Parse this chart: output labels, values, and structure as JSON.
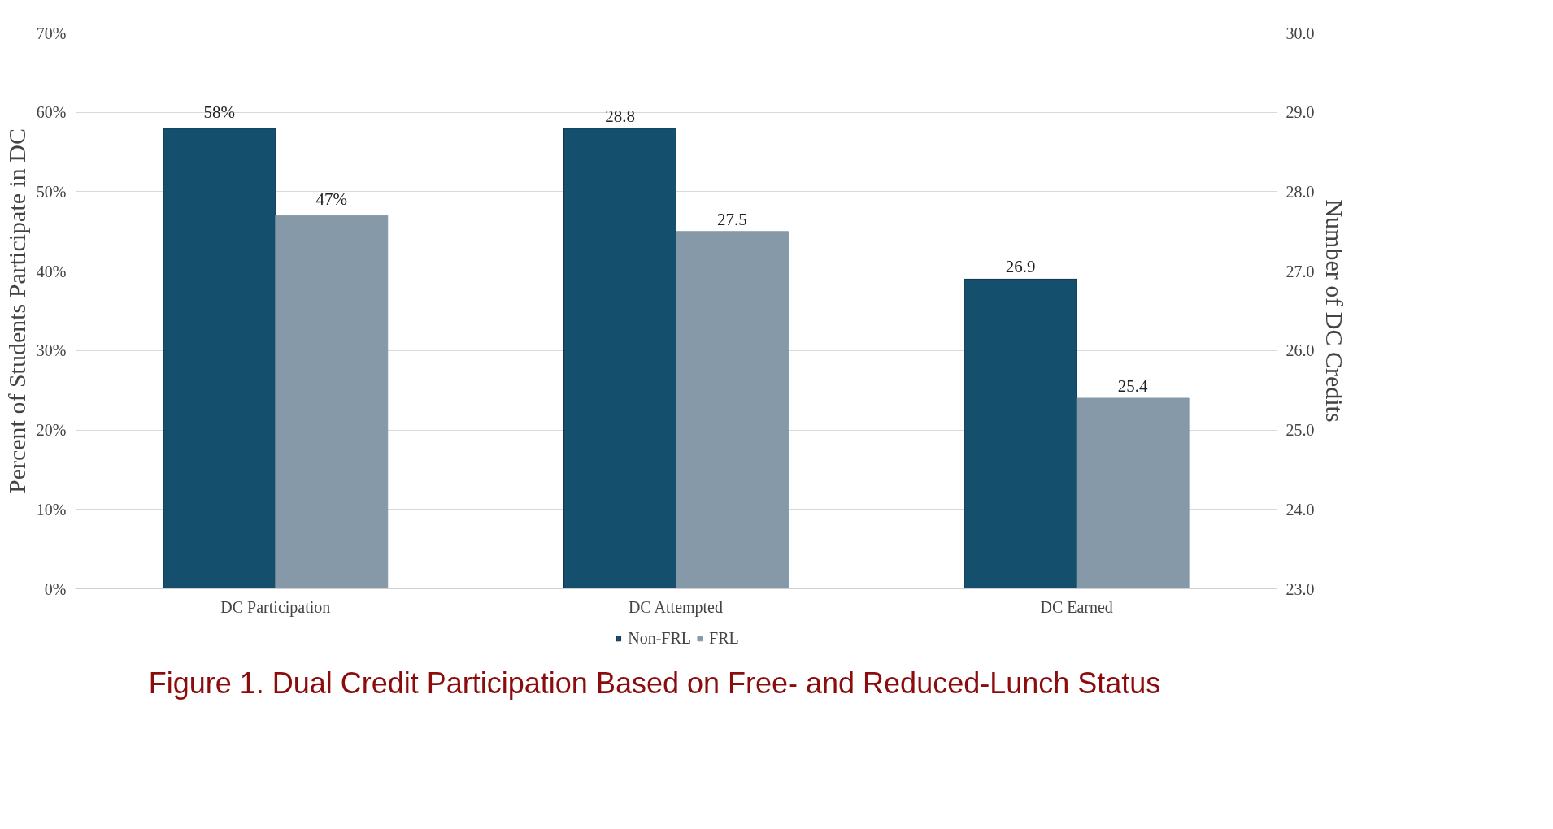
{
  "chart_data": {
    "type": "bar",
    "title": "Figure 1. Dual Credit Participation Based on Free- and Reduced-Lunch Status",
    "categories": [
      "DC Participation",
      "DC Attempted",
      "DC Earned"
    ],
    "ylabel": "Percent of Students Participate in DC",
    "y2label": "Number of DC Credits",
    "series": [
      {
        "name": "Non-FRL",
        "color": "#14506e",
        "values": [
          58,
          null,
          null
        ],
        "value_labels": [
          "58%",
          null,
          null
        ]
      },
      {
        "name": "FRL",
        "color": "#8599a8",
        "values": [
          47,
          null,
          null
        ],
        "value_labels": [
          "47%",
          null,
          null
        ]
      },
      {
        "color": "#14506e",
        "axis": "y2",
        "values": [
          null,
          28.8,
          26.9
        ],
        "value_labels": [
          null,
          "28.8",
          "26.9"
        ]
      },
      {
        "color": "#8599a8",
        "axis": "y2",
        "values": [
          null,
          27.5,
          25.4
        ],
        "value_labels": [
          null,
          "27.5",
          "25.4"
        ]
      }
    ],
    "ylim": [
      0,
      70
    ],
    "yticks": [
      {
        "value": 0,
        "label": "0%"
      },
      {
        "value": 10,
        "label": "10%"
      },
      {
        "value": 20,
        "label": "20%"
      },
      {
        "value": 30,
        "label": "30%"
      },
      {
        "value": 40,
        "label": "40%"
      },
      {
        "value": 50,
        "label": "50%"
      },
      {
        "value": 60,
        "label": "60%"
      },
      {
        "value": 70,
        "label": "70%"
      }
    ],
    "y2lim": [
      23,
      30
    ],
    "y2ticks": [
      {
        "value": 23,
        "label": "23.0"
      },
      {
        "value": 24,
        "label": "24.0"
      },
      {
        "value": 25,
        "label": "25.0"
      },
      {
        "value": 26,
        "label": "26.0"
      },
      {
        "value": 27,
        "label": "27.0"
      },
      {
        "value": 28,
        "label": "28.0"
      },
      {
        "value": 29,
        "label": "29.0"
      },
      {
        "value": 30,
        "label": "30.0"
      }
    ],
    "grid": "y",
    "legend": "bottom"
  }
}
